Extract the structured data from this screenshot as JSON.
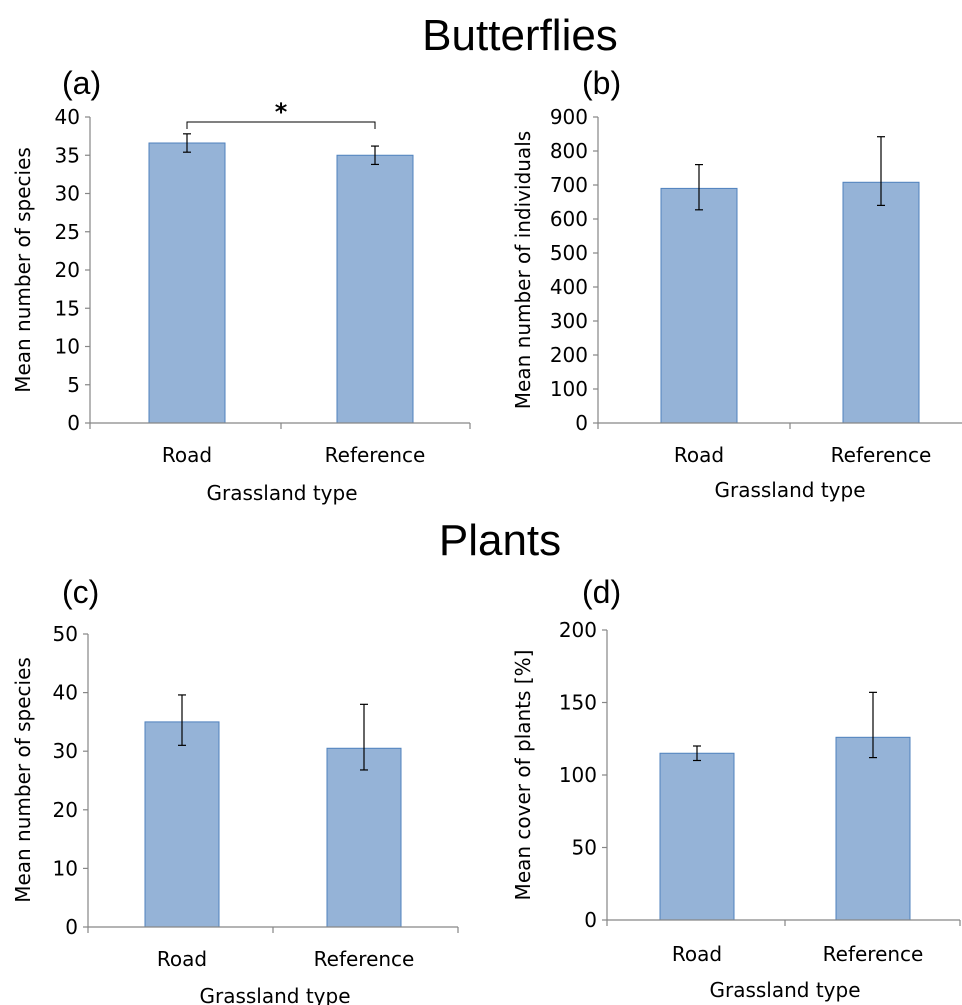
{
  "sections": [
    {
      "title": "Butterflies"
    },
    {
      "title": "Plants"
    }
  ],
  "chart_data": [
    {
      "panel": "(a)",
      "type": "bar",
      "categories": [
        "Road",
        "Reference"
      ],
      "values": [
        36.6,
        35.0
      ],
      "error_low": [
        35.4,
        33.8
      ],
      "error_high": [
        37.8,
        36.2
      ],
      "ylim": [
        0,
        40
      ],
      "yticks": [
        0,
        5,
        10,
        15,
        20,
        25,
        30,
        35,
        40
      ],
      "xlabel": "Grassland type",
      "ylabel": "Mean number of species",
      "significance": "*"
    },
    {
      "panel": "(b)",
      "type": "bar",
      "categories": [
        "Road",
        "Reference"
      ],
      "values": [
        690,
        708
      ],
      "error_low": [
        627,
        640
      ],
      "error_high": [
        760,
        842
      ],
      "ylim": [
        0,
        900
      ],
      "yticks": [
        0,
        100,
        200,
        300,
        400,
        500,
        600,
        700,
        800,
        900
      ],
      "xlabel": "Grassland type",
      "ylabel": "Mean number of individuals"
    },
    {
      "panel": "(c)",
      "type": "bar",
      "categories": [
        "Road",
        "Reference"
      ],
      "values": [
        35.0,
        30.5
      ],
      "error_low": [
        31.0,
        26.8
      ],
      "error_high": [
        39.6,
        38.0
      ],
      "ylim": [
        0,
        50
      ],
      "yticks": [
        0,
        10,
        20,
        30,
        40,
        50
      ],
      "xlabel": "Grassland type",
      "ylabel": "Mean number of species"
    },
    {
      "panel": "(d)",
      "type": "bar",
      "categories": [
        "Road",
        "Reference"
      ],
      "values": [
        115,
        126
      ],
      "error_low": [
        110,
        112
      ],
      "error_high": [
        120,
        157
      ],
      "ylim": [
        0,
        200
      ],
      "yticks": [
        0,
        50,
        100,
        150,
        200
      ],
      "xlabel": "Grassland type",
      "ylabel": "Mean cover of plants [%]"
    }
  ]
}
